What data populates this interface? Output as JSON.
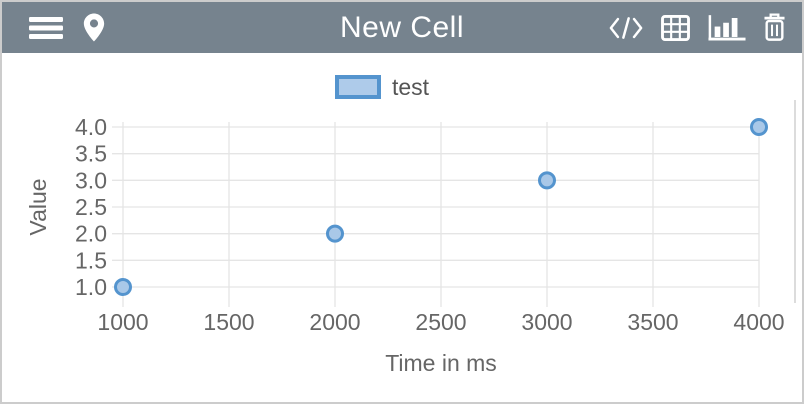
{
  "header": {
    "title": "New Cell",
    "active_view": "chart",
    "buttons": {
      "menu": "hamburger-menu",
      "location": "map-pin",
      "code_view": "code",
      "table_view": "table",
      "chart_view": "bar-chart",
      "delete": "trash"
    }
  },
  "chart_data": {
    "type": "scatter",
    "title": "",
    "series": [
      {
        "name": "test",
        "x": [
          1000,
          2000,
          3000,
          4000
        ],
        "y": [
          1,
          2,
          3,
          4
        ]
      }
    ],
    "xlabel": "Time in ms",
    "ylabel": "Value",
    "xlim": [
      1000,
      4000
    ],
    "ylim": [
      1.0,
      4.0
    ],
    "xtick_values": [
      1000,
      1500,
      2000,
      2500,
      3000,
      3500,
      4000
    ],
    "xtick_labels": [
      "1000",
      "1500",
      "2000",
      "2500",
      "3000",
      "3500",
      "4000"
    ],
    "ytick_values": [
      1.0,
      1.5,
      2.0,
      2.5,
      3.0,
      3.5,
      4.0
    ],
    "ytick_labels": [
      "1.0",
      "1.5",
      "2.0",
      "2.5",
      "3.0",
      "3.5",
      "4.0"
    ],
    "grid": true,
    "legend_position": "top-center",
    "colors": {
      "point_fill": "#a9c8e8",
      "point_stroke": "#5494ce",
      "legend_fill": "#aecbea",
      "legend_stroke": "#5494ce",
      "grid": "#e5e5e5",
      "plot_border": "#d0d0d0",
      "axis_text": "#666666",
      "legend_text": "#555555",
      "header_bg": "#76838e",
      "frame_border": "#cccccc"
    }
  }
}
